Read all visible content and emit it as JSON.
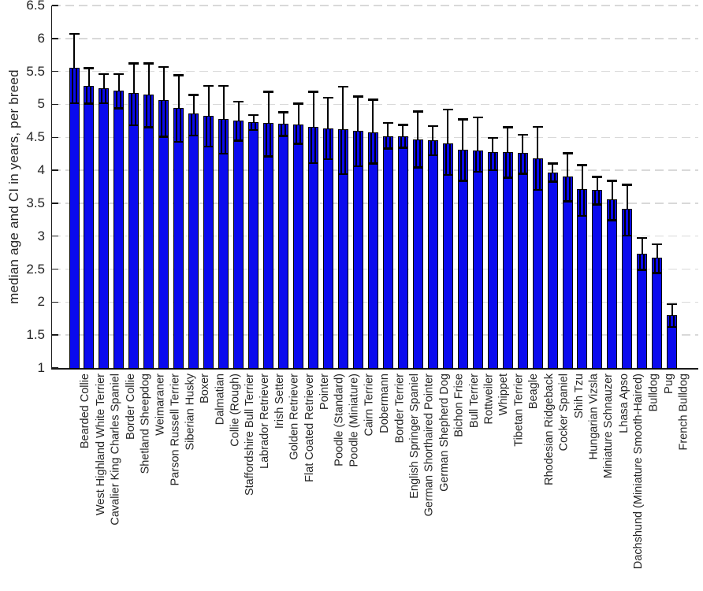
{
  "figure": {
    "background": "#ffffff"
  },
  "y_axis": {
    "label": "median age and CI in years, per breed",
    "tick_values": [
      6.5,
      6,
      5.5,
      5,
      4.5,
      4,
      3.5,
      3,
      2.5,
      2,
      1.5,
      1
    ],
    "tick_labels": [
      "6.5",
      "6",
      "5.5",
      "5",
      "4.5",
      "4",
      "3.5",
      "3",
      "2.5",
      "2",
      "1.5",
      "1"
    ],
    "min": 1,
    "max": 6.5,
    "text_color": "#262626"
  },
  "chart_data": {
    "type": "bar",
    "title": "",
    "xlabel": "",
    "ylabel": "median age and CI in years, per breed",
    "ylim": [
      1,
      6.5
    ],
    "grid": "horizontal dashed gridlines every 0.5",
    "legend": "none",
    "bar_color": "#0a0aee",
    "bar_edge_color": "#000000",
    "error_bar_color": "#000000",
    "gridline_color": "#d9d9d9",
    "categories": [
      "Bearded Collie",
      "West Highland White Terrier",
      "Cavalier King Charles Spaniel",
      "Border Collie",
      "Shetland Sheepdog",
      "Weimaraner",
      "Parson Russell Terrier",
      "Siberian Husky",
      "Boxer",
      "Dalmatian",
      "Collie (Rough)",
      "Staffordshire Bull Terrier",
      "Labrador Retriever",
      "Irish Setter",
      "Golden Retriever",
      "Flat Coated Retriever",
      "Pointer",
      "Poodle (Standard)",
      "Poodle (Miniature)",
      "Cairn Terrier",
      "Dobermann",
      "Border Terrier",
      "English Springer Spaniel",
      "German Shorthaired Pointer",
      "German Shepherd Dog",
      "Bichon Frise",
      "Bull Terrier",
      "Rottweiler",
      "Whippet",
      "Tibetan Terrier",
      "Beagle",
      "Rhodesian Ridgeback",
      "Cocker Spaniel",
      "Shih Tzu",
      "Hungarian Vizsla",
      "Miniature Schnauzer",
      "Lhasa Apso",
      "Dachshund (Miniature Smooth-Haired)",
      "Bulldog",
      "Pug",
      "French Bulldog"
    ],
    "series": [
      {
        "name": "median age (years)",
        "values": [
          5.55,
          5.28,
          5.24,
          5.21,
          5.17,
          5.15,
          5.06,
          4.94,
          4.86,
          4.83,
          4.78,
          4.76,
          4.73,
          4.72,
          4.71,
          4.7,
          4.66,
          4.64,
          4.62,
          4.6,
          4.58,
          4.52,
          4.51,
          4.47,
          4.46,
          4.41,
          4.31,
          4.3,
          4.28,
          4.28,
          4.26,
          4.18,
          3.97,
          3.91,
          3.71,
          3.7,
          3.56,
          3.41,
          2.73,
          2.67,
          1.8
        ]
      }
    ],
    "ci_low": [
      5.02,
      5.01,
      5.02,
      4.94,
      4.68,
      4.65,
      4.51,
      4.43,
      4.53,
      4.36,
      4.25,
      4.45,
      4.61,
      4.21,
      4.52,
      4.4,
      4.11,
      4.17,
      3.94,
      4.06,
      4.1,
      4.33,
      4.34,
      4.04,
      4.23,
      3.93,
      3.84,
      3.98,
      4.0,
      3.89,
      3.95,
      3.7,
      3.83,
      3.53,
      3.31,
      3.48,
      3.24,
      3.01,
      2.49,
      2.44,
      1.62
    ],
    "ci_high": [
      6.07,
      5.55,
      5.46,
      5.46,
      5.62,
      5.62,
      5.57,
      5.44,
      5.14,
      5.28,
      5.28,
      5.04,
      4.84,
      5.19,
      4.88,
      5.01,
      5.19,
      5.1,
      5.27,
      5.12,
      5.07,
      4.72,
      4.69,
      4.89,
      4.67,
      4.92,
      4.77,
      4.8,
      4.49,
      4.65,
      4.54,
      4.66,
      4.1,
      4.26,
      4.08,
      3.9,
      3.84,
      3.78,
      2.97,
      2.88,
      1.97
    ]
  }
}
